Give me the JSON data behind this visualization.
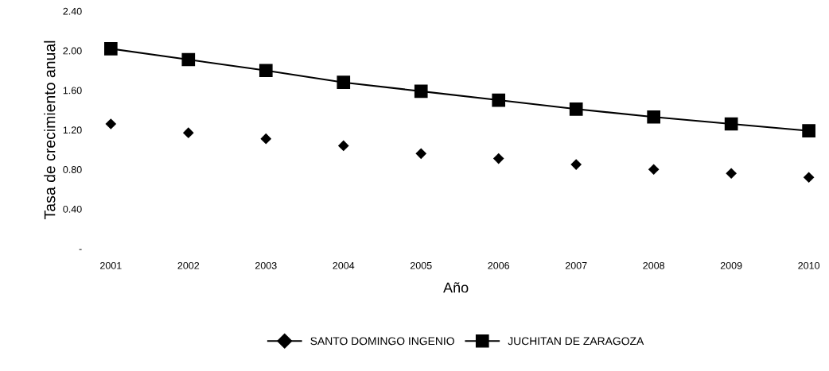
{
  "chart_data": {
    "type": "line",
    "xlabel": "Año",
    "ylabel": "Tasa de crecimiento anual",
    "categories": [
      "2001",
      "2002",
      "2003",
      "2004",
      "2005",
      "2006",
      "2007",
      "2008",
      "2009",
      "2010"
    ],
    "series": [
      {
        "name": "SANTO DOMINGO INGENIO",
        "type": "scatter",
        "color": "#000000",
        "marker": "diamond",
        "values": [
          1.26,
          1.17,
          1.11,
          1.04,
          0.96,
          0.91,
          0.85,
          0.8,
          0.76,
          0.72
        ]
      },
      {
        "name": "JUCHITAN DE ZARAGOZA",
        "color": "#000000",
        "marker": "square",
        "values": [
          2.02,
          1.91,
          1.8,
          1.68,
          1.59,
          1.5,
          1.41,
          1.33,
          1.26,
          1.19
        ]
      }
    ],
    "ylim": [
      0,
      2.4
    ],
    "yticks": [
      {
        "value": 0,
        "label": "-"
      },
      {
        "value": 0.4,
        "label": "0.40"
      },
      {
        "value": 0.8,
        "label": "0.80"
      },
      {
        "value": 1.2,
        "label": "1.20"
      },
      {
        "value": 1.6,
        "label": "1.60"
      },
      {
        "value": 2.0,
        "label": "2.00"
      },
      {
        "value": 2.4,
        "label": "2.40"
      }
    ],
    "grid": false,
    "legend": "bottom"
  }
}
